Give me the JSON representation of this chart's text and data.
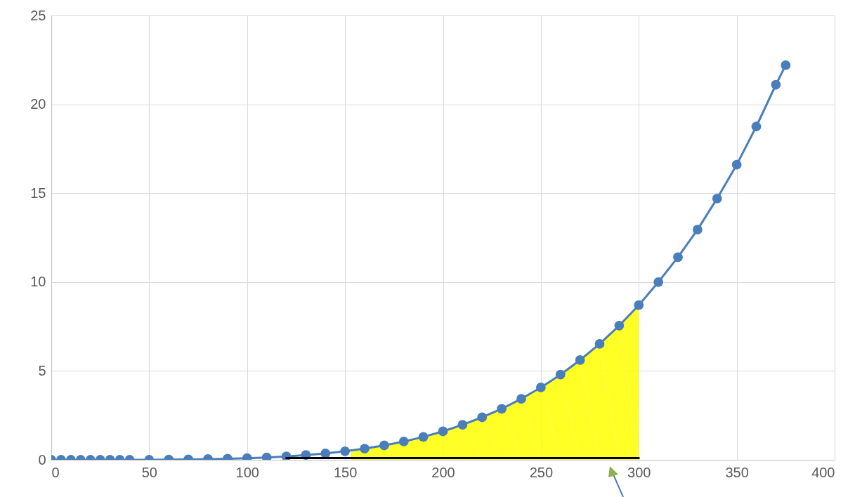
{
  "chart_data": {
    "type": "line",
    "marker": "circle",
    "line_style": "solid",
    "grid": true,
    "xlim": [
      0,
      400
    ],
    "xticks": [
      0,
      50,
      100,
      150,
      200,
      250,
      300,
      350,
      400
    ],
    "ylim": [
      0,
      25
    ],
    "yticks": [
      0,
      5,
      10,
      15,
      20,
      25
    ],
    "series": [
      {
        "type": "area",
        "color": "#ffff00",
        "marker": "none",
        "x": [
          153,
          160,
          170,
          180,
          190,
          200,
          210,
          220,
          230,
          240,
          250,
          260,
          270,
          280,
          290,
          300
        ],
        "values": [
          0.52,
          0.63,
          0.81,
          1.03,
          1.29,
          1.6,
          1.97,
          2.39,
          2.87,
          3.43,
          4.07,
          4.79,
          5.61,
          6.52,
          7.55,
          8.7
        ]
      },
      {
        "color": "#4a7ebb",
        "x": [
          0,
          5,
          10,
          15,
          20,
          25,
          30,
          35,
          40,
          50,
          60,
          70,
          80,
          90,
          100,
          110,
          120,
          130,
          140,
          150,
          160,
          170,
          180,
          190,
          200,
          210,
          220,
          230,
          240,
          250,
          260,
          270,
          280,
          290,
          300,
          310,
          320,
          330,
          340,
          350,
          360,
          370,
          375
        ],
        "values": [
          0,
          0,
          0,
          0,
          0,
          0,
          0,
          0,
          0,
          0,
          0.01,
          0.02,
          0.04,
          0.06,
          0.09,
          0.13,
          0.19,
          0.27,
          0.36,
          0.48,
          0.63,
          0.81,
          1.03,
          1.29,
          1.6,
          1.97,
          2.39,
          2.87,
          3.43,
          4.07,
          4.79,
          5.61,
          6.52,
          7.55,
          8.7,
          10,
          11.4,
          12.95,
          14.7,
          16.6,
          18.75,
          21.1,
          22.2
        ]
      },
      {
        "color": "#000000",
        "marker": "none",
        "x": [
          120,
          300
        ],
        "values": [
          0.1,
          0.1
        ]
      }
    ]
  }
}
